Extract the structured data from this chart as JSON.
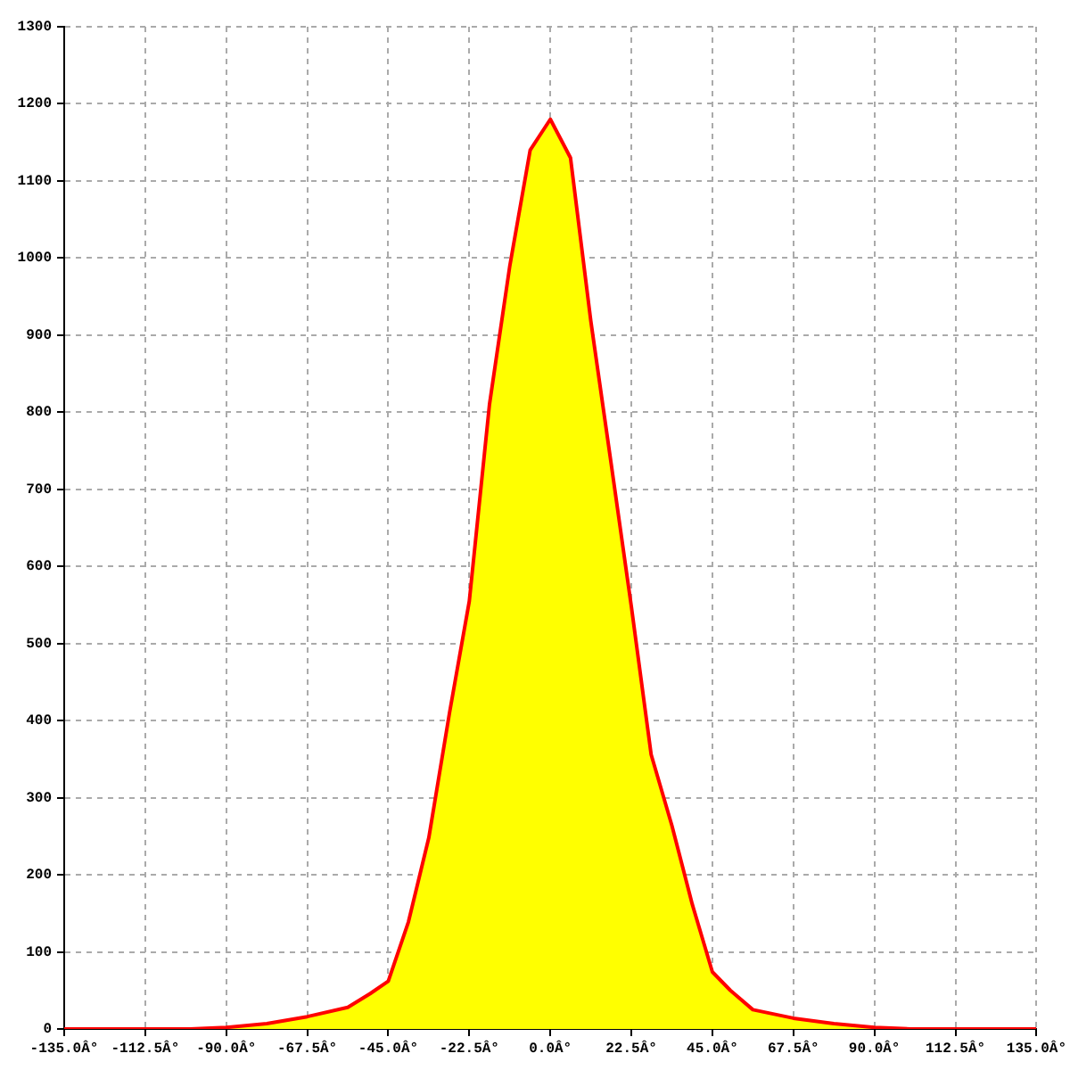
{
  "chart_data": {
    "type": "area",
    "xlim": [
      -135,
      135
    ],
    "xticks": [
      {
        "value": -135,
        "label": "-135.0Â°"
      },
      {
        "value": -112.5,
        "label": "-112.5Â°"
      },
      {
        "value": -90,
        "label": "-90.0Â°"
      },
      {
        "value": -67.5,
        "label": "-67.5Â°"
      },
      {
        "value": -45,
        "label": "-45.0Â°"
      },
      {
        "value": -22.5,
        "label": "-22.5Â°"
      },
      {
        "value": 0,
        "label": "0.0Â°"
      },
      {
        "value": 22.5,
        "label": "22.5Â°"
      },
      {
        "value": 45,
        "label": "45.0Â°"
      },
      {
        "value": 67.5,
        "label": "67.5Â°"
      },
      {
        "value": 90,
        "label": "90.0Â°"
      },
      {
        "value": 112.5,
        "label": "112.5Â°"
      },
      {
        "value": 135,
        "label": "135.0Â°"
      }
    ],
    "ylim": [
      0,
      1300
    ],
    "yticks": [
      0,
      100,
      200,
      300,
      400,
      500,
      600,
      700,
      800,
      900,
      1000,
      1100,
      1200,
      1300
    ],
    "grid": true,
    "marker": "none",
    "series": [
      {
        "type": "area",
        "color": "#ffff00",
        "x": [
          -100,
          -90,
          -78.75,
          -67.5,
          -56.25,
          -50,
          -45,
          -39.4,
          -33.75,
          -28,
          -22.5,
          -16.9,
          -11.25,
          -5.6,
          0,
          5.6,
          11.25,
          16.9,
          22.5,
          28,
          33.75,
          39.4,
          45,
          50,
          56.25,
          67.5,
          78.75,
          90,
          100
        ],
        "values": [
          0,
          2,
          7,
          16,
          28,
          46,
          62,
          139,
          248,
          410,
          555,
          810,
          990,
          1140,
          1180,
          1130,
          918,
          733,
          548,
          356,
          264,
          162,
          74,
          50,
          25,
          14,
          7,
          2,
          0
        ]
      },
      {
        "type": "line",
        "color": "#ff0000",
        "x": [
          -135,
          -100,
          -90,
          -78.75,
          -67.5,
          -56.25,
          -50,
          -45,
          -39.4,
          -33.75,
          -28,
          -22.5,
          -16.9,
          -11.25,
          -5.6,
          0,
          5.6,
          11.25,
          16.9,
          22.5,
          28,
          33.75,
          39.4,
          45,
          50,
          56.25,
          67.5,
          78.75,
          90,
          100,
          135
        ],
        "values": [
          0,
          0,
          2,
          7,
          16,
          28,
          46,
          62,
          139,
          248,
          410,
          555,
          810,
          990,
          1140,
          1180,
          1130,
          918,
          733,
          548,
          356,
          264,
          162,
          74,
          50,
          25,
          14,
          7,
          2,
          0,
          0
        ]
      }
    ]
  }
}
